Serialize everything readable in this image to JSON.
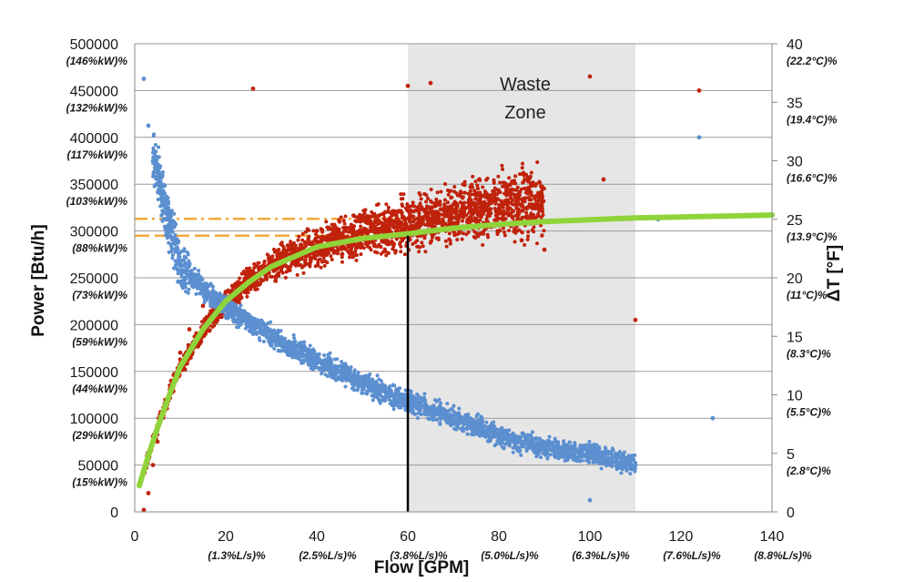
{
  "chart_data": {
    "type": "scatter",
    "title": "",
    "xlabel": "Flow [GPM]",
    "ylabel": "Power [Btu/h]",
    "y2label": "ΔT [°F]",
    "xlim": [
      0,
      140
    ],
    "ylim": [
      0,
      500000
    ],
    "y2lim": [
      0,
      40
    ],
    "grid": "horizontal",
    "x_ticks": [
      0,
      20,
      40,
      60,
      80,
      100,
      120,
      140
    ],
    "x_sub_labels": [
      "",
      "(1.3%L/s)%",
      "(2.5%L/s)%",
      "(3.8%L/s)%",
      "(5.0%L/s)%",
      "(6.3%L/s)%",
      "(7.6%L/s)%",
      "(8.8%L/s)%"
    ],
    "y_ticks": [
      0,
      50000,
      100000,
      150000,
      200000,
      250000,
      300000,
      350000,
      400000,
      450000,
      500000
    ],
    "y_sub_labels": [
      "",
      "(15%kW)%",
      "(29%kW)%",
      "(44%kW)%",
      "(59%kW)%",
      "(73%kW)%",
      "(88%kW)%",
      "(103%kW)%",
      "(117%kW)%",
      "(132%kW)%",
      "(146%kW)%"
    ],
    "y2_ticks": [
      0,
      5,
      10,
      15,
      20,
      25,
      30,
      35,
      40
    ],
    "y2_sub_labels": [
      "",
      "(2.8°C)%",
      "(5.5°C)%",
      "(8.3°C)%",
      "(11°C)%",
      "(13.9°C)%",
      "(16.6°C)%",
      "(19.4°C)%",
      "(22.2°C)%"
    ],
    "shaded_region": {
      "label_line1": "Waste",
      "label_line2": "Zone",
      "x_from": 60,
      "x_to": 110,
      "color": "#e6e6e6"
    },
    "vertical_marker": {
      "x": 60,
      "y_to": 295000,
      "color": "#000000"
    },
    "reference_lines": [
      {
        "y": 313000,
        "x_to": 60,
        "style": "dash-dot",
        "color": "#f2a93b"
      },
      {
        "y": 295000,
        "x_to": 60,
        "style": "dashed",
        "color": "#f2a93b"
      }
    ],
    "series": [
      {
        "axis": "y",
        "color": "#c0220b",
        "points": [
          [
            2,
            2000
          ],
          [
            3,
            20000
          ],
          [
            4,
            50000
          ],
          [
            5,
            75000
          ],
          [
            6,
            100000
          ],
          [
            8,
            140000
          ],
          [
            10,
            170000
          ],
          [
            12,
            195000
          ],
          [
            15,
            220000
          ],
          [
            20,
            235000
          ],
          [
            25,
            255000
          ],
          [
            30,
            270000
          ],
          [
            35,
            285000
          ],
          [
            40,
            300000
          ],
          [
            45,
            310000
          ],
          [
            50,
            315000
          ],
          [
            55,
            320000
          ],
          [
            60,
            322000
          ],
          [
            65,
            325000
          ],
          [
            70,
            320000
          ],
          [
            75,
            310000
          ],
          [
            80,
            300000
          ],
          [
            85,
            290000
          ],
          [
            90,
            280000
          ],
          [
            60,
            455000
          ],
          [
            65,
            458000
          ],
          [
            26,
            452000
          ],
          [
            100,
            465000
          ],
          [
            103,
            355000
          ],
          [
            110,
            205000
          ],
          [
            124,
            450000
          ]
        ]
      },
      {
        "axis": "y2",
        "color": "#5b8fd0",
        "points": [
          [
            2,
            37
          ],
          [
            3,
            33
          ],
          [
            4,
            30
          ],
          [
            5,
            29
          ],
          [
            6,
            27
          ],
          [
            8,
            24
          ],
          [
            10,
            21
          ],
          [
            15,
            19
          ],
          [
            20,
            17.5
          ],
          [
            30,
            15
          ],
          [
            40,
            13
          ],
          [
            50,
            11
          ],
          [
            60,
            9.5
          ],
          [
            70,
            8
          ],
          [
            80,
            6.5
          ],
          [
            90,
            5.5
          ],
          [
            100,
            5
          ],
          [
            110,
            4
          ],
          [
            115,
            25
          ],
          [
            124,
            32
          ],
          [
            127,
            8
          ],
          [
            100,
            1
          ]
        ]
      }
    ],
    "fit_curve": {
      "axis": "y",
      "color": "#8fd43a",
      "points": [
        [
          1,
          28000
        ],
        [
          3,
          60000
        ],
        [
          5,
          90000
        ],
        [
          8,
          130000
        ],
        [
          10,
          155000
        ],
        [
          15,
          195000
        ],
        [
          20,
          225000
        ],
        [
          25,
          245000
        ],
        [
          30,
          262000
        ],
        [
          40,
          283000
        ],
        [
          50,
          292000
        ],
        [
          60,
          297000
        ],
        [
          70,
          303000
        ],
        [
          80,
          307000
        ],
        [
          90,
          310000
        ],
        [
          100,
          312000
        ],
        [
          110,
          314000
        ],
        [
          120,
          315000
        ],
        [
          130,
          316000
        ],
        [
          140,
          317000
        ]
      ]
    }
  }
}
